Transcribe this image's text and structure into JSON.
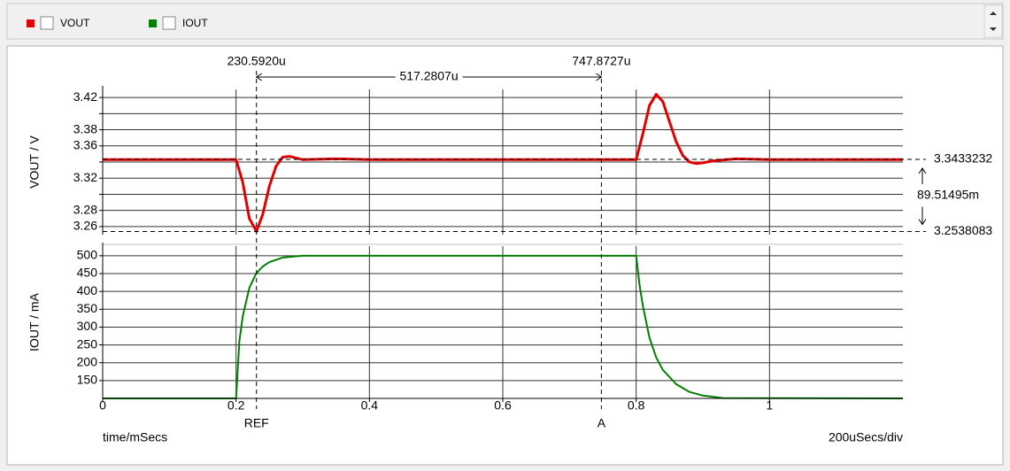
{
  "chart_data": [
    {
      "type": "line",
      "ylabel": "VOUT / V",
      "x": [
        0,
        0.2,
        0.21,
        0.22,
        0.2306,
        0.24,
        0.25,
        0.26,
        0.27,
        0.28,
        0.3,
        0.35,
        0.4,
        0.6,
        0.8,
        0.81,
        0.82,
        0.83,
        0.84,
        0.85,
        0.86,
        0.87,
        0.88,
        0.89,
        0.9,
        0.92,
        0.95,
        1.0,
        1.2
      ],
      "series": [
        {
          "name": "VOUT",
          "color": "#e00000",
          "values": [
            3.343,
            3.343,
            3.315,
            3.27,
            3.254,
            3.275,
            3.31,
            3.335,
            3.346,
            3.347,
            3.343,
            3.344,
            3.343,
            3.343,
            3.343,
            3.375,
            3.41,
            3.424,
            3.415,
            3.39,
            3.365,
            3.348,
            3.34,
            3.338,
            3.339,
            3.342,
            3.344,
            3.343,
            3.343
          ]
        }
      ],
      "xlim": [
        0,
        1.2
      ],
      "xticks": [
        0,
        0.2,
        0.4,
        0.6,
        0.8,
        1
      ],
      "ylim": [
        3.25,
        3.43
      ],
      "yticks": [
        3.26,
        3.28,
        {
          "value": 3.3,
          "label": null
        },
        3.32,
        {
          "value": 3.34,
          "label": null
        },
        3.36,
        3.38,
        {
          "value": 3.4,
          "label": null
        },
        3.42
      ],
      "grid": true
    },
    {
      "type": "line",
      "ylabel": "IOUT / mA",
      "xlabel": "time/mSecs",
      "x_scale_label": "200uSecs/div",
      "x": [
        0,
        0.2,
        0.205,
        0.21,
        0.22,
        0.23,
        0.24,
        0.25,
        0.27,
        0.3,
        0.8,
        0.805,
        0.81,
        0.82,
        0.83,
        0.84,
        0.86,
        0.88,
        0.9,
        0.93,
        1.2
      ],
      "series": [
        {
          "name": "IOUT",
          "color": "#008000",
          "values": [
            100,
            100,
            260,
            330,
            410,
            450,
            470,
            482,
            495,
            500,
            500,
            420,
            360,
            270,
            215,
            180,
            140,
            118,
            108,
            101,
            100
          ]
        }
      ],
      "xlim": [
        0,
        1.2
      ],
      "xticks": [
        0,
        0.2,
        0.4,
        0.6,
        0.8,
        1
      ],
      "ylim": [
        100,
        527
      ],
      "yticks": [
        150,
        200,
        250,
        300,
        350,
        400,
        450,
        500
      ],
      "grid": true
    }
  ],
  "cursors": {
    "vertical": [
      {
        "value": 0.230592,
        "label": "230.5920u",
        "name": "REF"
      },
      {
        "value": 0.7478727,
        "label": "747.8727u",
        "name": "A"
      }
    ],
    "x_delta": {
      "value": 0.5172807,
      "label": "517.2807u"
    },
    "horizontal": [
      {
        "value": 3.3433232,
        "label": "3.3433232"
      },
      {
        "value": 3.2538083,
        "label": "3.2538083"
      }
    ],
    "y_delta": {
      "value": 0.08951495,
      "label": "89.51495m"
    }
  }
}
